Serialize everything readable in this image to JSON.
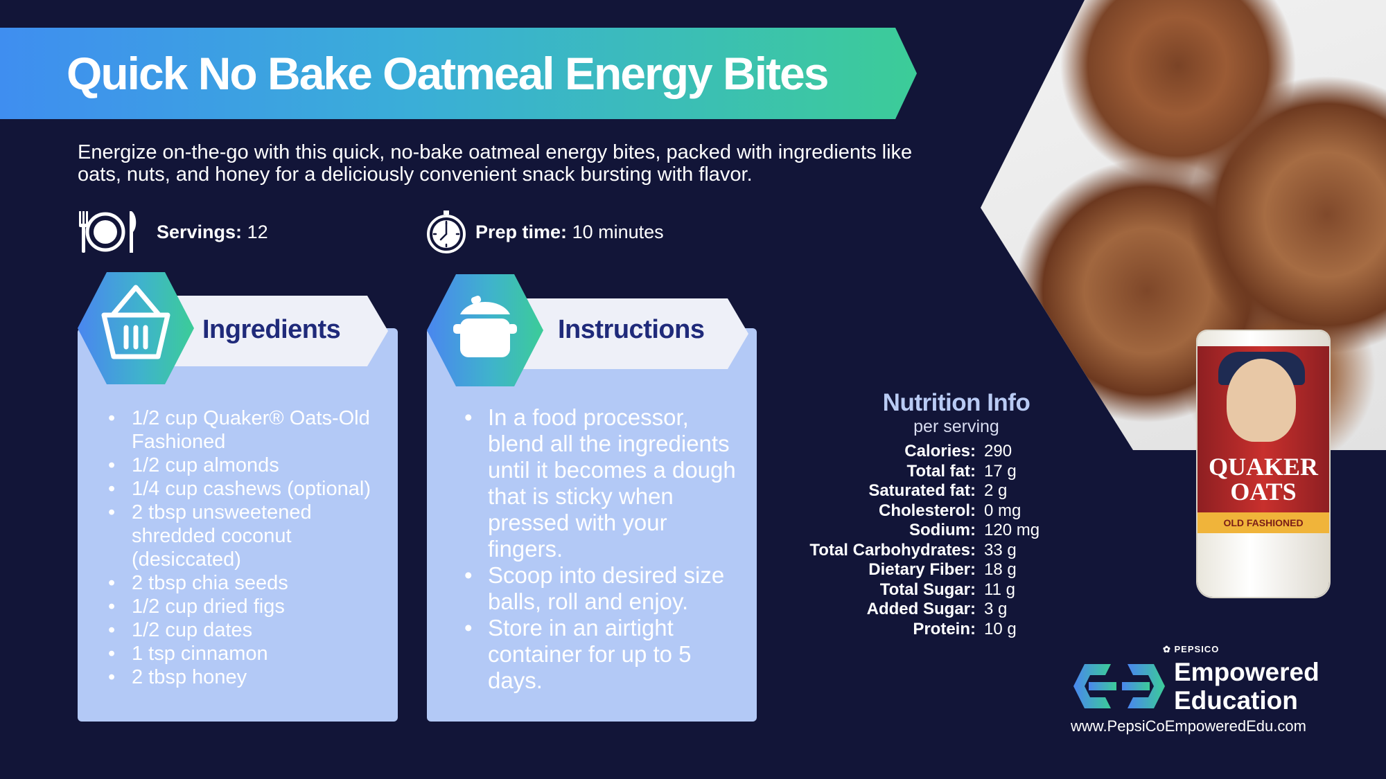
{
  "title": "Quick No Bake Oatmeal Energy Bites",
  "intro": "Energize on-the-go with this quick, no-bake oatmeal energy bites, packed with ingredients like oats, nuts, and honey for a deliciously convenient snack bursting with flavor.",
  "servings": {
    "label": "Servings:",
    "value": "12",
    "icon": "plate-cutlery-icon"
  },
  "prep": {
    "label": "Prep time:",
    "value": "10 minutes",
    "icon": "stopwatch-icon"
  },
  "ingredients": {
    "heading": "Ingredients",
    "icon": "basket-icon",
    "items": [
      "1/2 cup Quaker® Oats-Old Fashioned",
      "1/2 cup almonds",
      "1/4 cup cashews (optional)",
      "2 tbsp unsweetened shredded coconut (desiccated)",
      "2 tbsp chia seeds",
      "1/2 cup dried figs",
      "1/2 cup dates",
      "1 tsp cinnamon",
      "2 tbsp honey"
    ]
  },
  "instructions": {
    "heading": "Instructions",
    "icon": "cooking-pot-icon",
    "items": [
      "In a food processor, blend all the ingredients until it becomes a dough that is sticky when pressed with your fingers.",
      "Scoop into desired size balls, roll and enjoy.",
      "Store in an airtight container for up to 5 days."
    ]
  },
  "nutrition": {
    "title": "Nutrition Info",
    "subtitle": "per serving",
    "rows": [
      {
        "label": "Calories:",
        "value": "290"
      },
      {
        "label": "Total fat:",
        "value": "17 g"
      },
      {
        "label": "Saturated fat:",
        "value": "2 g"
      },
      {
        "label": "Cholesterol:",
        "value": "0 mg"
      },
      {
        "label": "Sodium:",
        "value": "120 mg"
      },
      {
        "label": "Total Carbohydrates:",
        "value": "33 g"
      },
      {
        "label": "Dietary Fiber:",
        "value": "18 g"
      },
      {
        "label": "Total Sugar:",
        "value": "11 g"
      },
      {
        "label": "Added Sugar:",
        "value": "3 g"
      },
      {
        "label": "Protein:",
        "value": "10 g"
      }
    ]
  },
  "product": {
    "brand": "QUAKER OATS",
    "variant": "OLD FASHIONED"
  },
  "logo": {
    "company": "PEPSICO",
    "line1": "Empowered",
    "line2": "Education",
    "url": "www.PepsiCoEmpoweredEdu.com"
  },
  "colors": {
    "background": "#121538",
    "card": "#b3c9f6",
    "accent_blue": "#3f8ef0",
    "accent_green": "#3ccc98",
    "heading_text": "#1f2a7a"
  }
}
